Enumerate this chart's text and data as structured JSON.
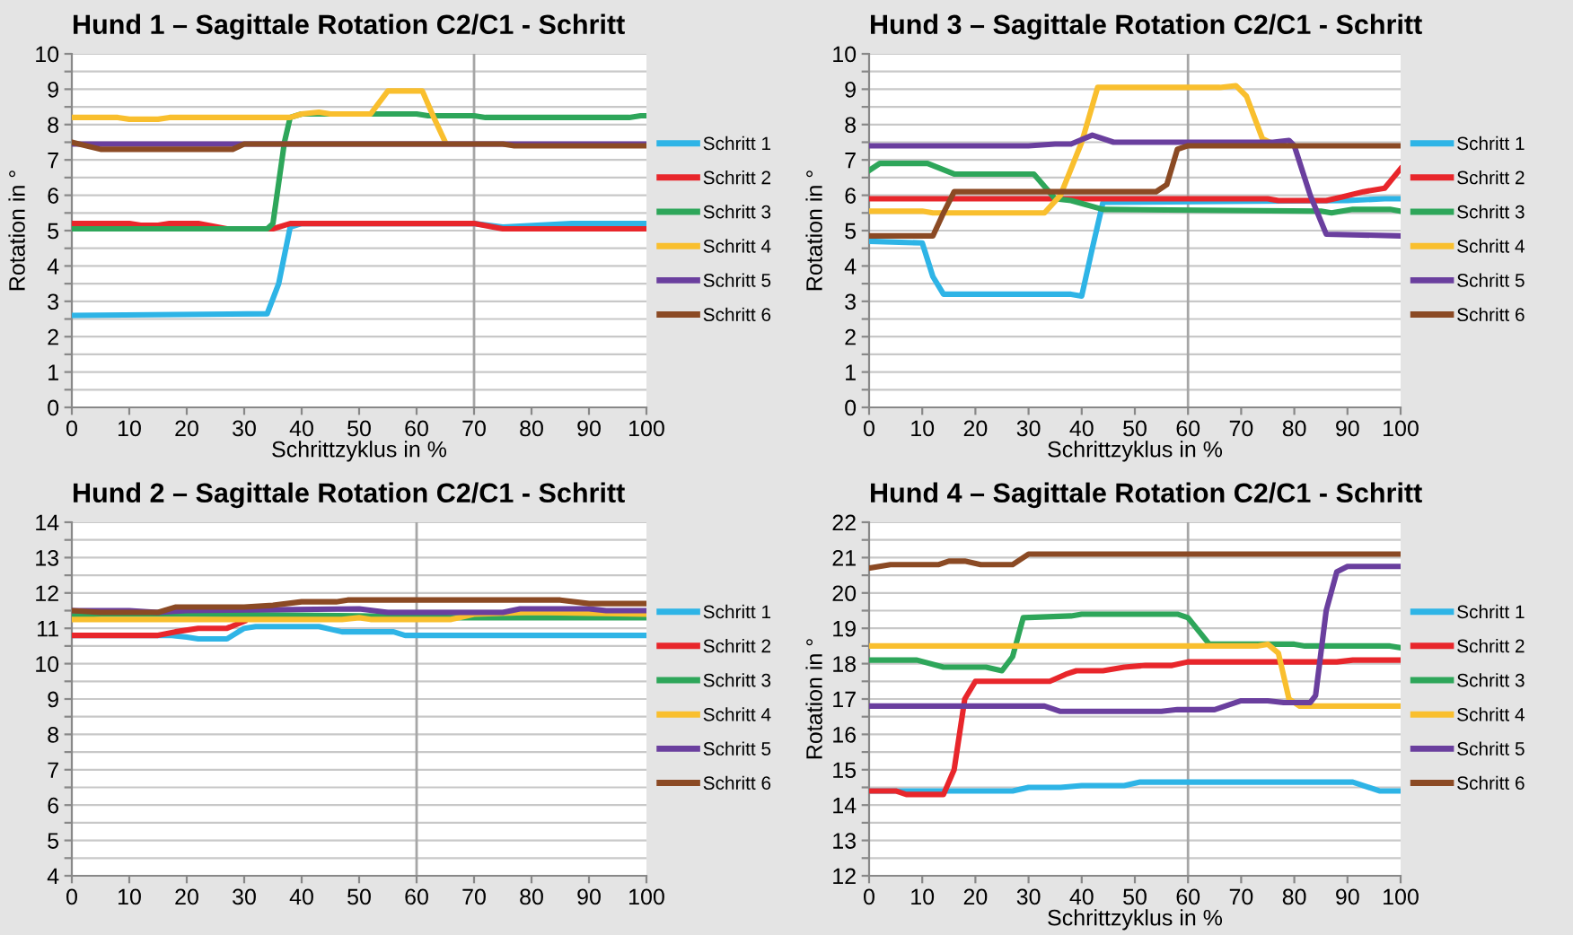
{
  "chart_data": [
    {
      "type": "line",
      "title": "Hund 1 – Sagittale Rotation C2/C1 - Schritt",
      "xlabel": "Schrittzyklus in %",
      "ylabel": "Rotation in °",
      "xlim": [
        0,
        100
      ],
      "xticks": [
        0,
        10,
        20,
        30,
        40,
        50,
        60,
        70,
        80,
        90,
        100
      ],
      "ylim": [
        0,
        10
      ],
      "yticks": [
        0,
        {
          "value": 0.5,
          "label": null
        },
        1,
        {
          "value": 1.5,
          "label": null
        },
        2,
        {
          "value": 2.5,
          "label": null
        },
        3,
        {
          "value": 3.5,
          "label": null
        },
        4,
        {
          "value": 4.5,
          "label": null
        },
        5,
        {
          "value": 5.5,
          "label": null
        },
        6,
        {
          "value": 6.5,
          "label": null
        },
        7,
        {
          "value": 7.5,
          "label": null
        },
        8,
        {
          "value": 8.5,
          "label": null
        },
        9,
        {
          "value": 9.5,
          "label": null
        },
        10
      ],
      "grid": "y",
      "legend": "right",
      "marker": "none",
      "line_style": "solid",
      "ref_lines": [
        {
          "axis": "x",
          "value": 70,
          "color": "#a6a6a6"
        }
      ],
      "series": [
        {
          "name": "Schritt 1",
          "color": "#2eb4e6",
          "x": [
            0,
            34,
            36,
            38,
            40,
            70,
            75,
            87,
            100
          ],
          "values": [
            2.6,
            2.65,
            3.5,
            5.1,
            5.2,
            5.2,
            5.1,
            5.2,
            5.2
          ]
        },
        {
          "name": "Schritt 2",
          "color": "#e8262b",
          "x": [
            0,
            10,
            12,
            15,
            17,
            22,
            27,
            35,
            38,
            70,
            75,
            100
          ],
          "values": [
            5.2,
            5.2,
            5.15,
            5.15,
            5.2,
            5.2,
            5.05,
            5.05,
            5.2,
            5.2,
            5.05,
            5.05
          ]
        },
        {
          "name": "Schritt 3",
          "color": "#2ea65a",
          "x": [
            0,
            34,
            35,
            37,
            38,
            40,
            60,
            62,
            70,
            72,
            97,
            99,
            100
          ],
          "values": [
            5.05,
            5.05,
            5.2,
            7.5,
            8.2,
            8.3,
            8.3,
            8.25,
            8.25,
            8.2,
            8.2,
            8.25,
            8.25
          ]
        },
        {
          "name": "Schritt 4",
          "color": "#f9bf2e",
          "x": [
            0,
            8,
            10,
            15,
            17,
            38,
            40,
            43,
            45,
            52,
            55,
            61,
            63,
            65
          ],
          "values": [
            8.2,
            8.2,
            8.15,
            8.15,
            8.2,
            8.2,
            8.3,
            8.35,
            8.3,
            8.3,
            8.95,
            8.95,
            8.2,
            7.5
          ]
        },
        {
          "name": "Schritt 5",
          "color": "#6a3f9e",
          "x": [
            0,
            100
          ],
          "values": [
            7.45,
            7.45
          ]
        },
        {
          "name": "Schritt 6",
          "color": "#8b4a24",
          "x": [
            0,
            5,
            28,
            30,
            75,
            77,
            100
          ],
          "values": [
            7.5,
            7.3,
            7.3,
            7.45,
            7.45,
            7.4,
            7.4
          ]
        }
      ]
    },
    {
      "type": "line",
      "title": "Hund 3 – Sagittale Rotation C2/C1 - Schritt",
      "xlabel": "Schrittzyklus in %",
      "ylabel": "Rotation in °",
      "xlim": [
        0,
        100
      ],
      "xticks": [
        0,
        10,
        20,
        30,
        40,
        50,
        60,
        70,
        80,
        90,
        100
      ],
      "ylim": [
        0,
        10
      ],
      "yticks": [
        0,
        {
          "value": 0.5,
          "label": null
        },
        1,
        {
          "value": 1.5,
          "label": null
        },
        2,
        {
          "value": 2.5,
          "label": null
        },
        3,
        {
          "value": 3.5,
          "label": null
        },
        4,
        {
          "value": 4.5,
          "label": null
        },
        5,
        {
          "value": 5.5,
          "label": null
        },
        6,
        {
          "value": 6.5,
          "label": null
        },
        7,
        {
          "value": 7.5,
          "label": null
        },
        8,
        {
          "value": 8.5,
          "label": null
        },
        9,
        {
          "value": 9.5,
          "label": null
        },
        10
      ],
      "grid": "y",
      "legend": "right",
      "marker": "none",
      "line_style": "solid",
      "ref_lines": [
        {
          "axis": "x",
          "value": 60,
          "color": "#a6a6a6"
        }
      ],
      "series": [
        {
          "name": "Schritt 1",
          "color": "#2eb4e6",
          "x": [
            0,
            10,
            12,
            14,
            38,
            40,
            42,
            44,
            90,
            97,
            100
          ],
          "values": [
            4.7,
            4.65,
            3.7,
            3.2,
            3.2,
            3.15,
            4.5,
            5.8,
            5.85,
            5.9,
            5.9
          ]
        },
        {
          "name": "Schritt 2",
          "color": "#e8262b",
          "x": [
            0,
            75,
            77,
            86,
            89,
            93,
            97,
            100
          ],
          "values": [
            5.9,
            5.9,
            5.85,
            5.85,
            5.95,
            6.1,
            6.2,
            6.75
          ]
        },
        {
          "name": "Schritt 3",
          "color": "#2ea65a",
          "x": [
            0,
            2,
            11,
            16,
            31,
            35,
            38,
            44,
            85,
            87,
            91,
            98,
            100
          ],
          "values": [
            6.7,
            6.9,
            6.9,
            6.6,
            6.6,
            5.9,
            5.85,
            5.6,
            5.55,
            5.5,
            5.6,
            5.6,
            5.55
          ]
        },
        {
          "name": "Schritt 4",
          "color": "#f9bf2e",
          "x": [
            0,
            10,
            12,
            33,
            36,
            40,
            43,
            66,
            69,
            71,
            74,
            76
          ],
          "values": [
            5.55,
            5.55,
            5.5,
            5.5,
            6.0,
            7.5,
            9.05,
            9.05,
            9.1,
            8.8,
            7.6,
            7.45
          ]
        },
        {
          "name": "Schritt 5",
          "color": "#6a3f9e",
          "x": [
            0,
            30,
            35,
            38,
            42,
            46,
            76,
            79,
            80,
            83,
            86,
            100
          ],
          "values": [
            7.4,
            7.4,
            7.45,
            7.45,
            7.7,
            7.5,
            7.5,
            7.55,
            7.4,
            6.0,
            4.9,
            4.85
          ]
        },
        {
          "name": "Schritt 6",
          "color": "#8b4a24",
          "x": [
            0,
            12,
            14,
            16,
            54,
            56,
            58,
            60,
            100
          ],
          "values": [
            4.85,
            4.85,
            5.5,
            6.1,
            6.1,
            6.3,
            7.3,
            7.4,
            7.4
          ]
        }
      ]
    },
    {
      "type": "line",
      "title": "Hund 2 – Sagittale Rotation C2/C1 - Schritt",
      "xlim": [
        0,
        100
      ],
      "xticks": [
        0,
        10,
        20,
        30,
        40,
        50,
        60,
        70,
        80,
        90,
        100
      ],
      "ylim": [
        4,
        14
      ],
      "yticks": [
        4,
        {
          "value": 4.5,
          "label": null
        },
        5,
        {
          "value": 5.5,
          "label": null
        },
        6,
        {
          "value": 6.5,
          "label": null
        },
        7,
        {
          "value": 7.5,
          "label": null
        },
        8,
        {
          "value": 8.5,
          "label": null
        },
        9,
        {
          "value": 9.5,
          "label": null
        },
        10,
        {
          "value": 10.5,
          "label": null
        },
        11,
        {
          "value": 11.5,
          "label": null
        },
        12,
        {
          "value": 12.5,
          "label": null
        },
        13,
        {
          "value": 13.5,
          "label": null
        },
        14
      ],
      "grid": "y",
      "legend": "right",
      "marker": "none",
      "line_style": "solid",
      "ref_lines": [
        {
          "axis": "x",
          "value": 60,
          "color": "#a6a6a6"
        }
      ],
      "series": [
        {
          "name": "Schritt 1",
          "color": "#2eb4e6",
          "x": [
            0,
            17,
            20,
            22,
            27,
            30,
            32,
            43,
            47,
            56,
            58,
            100
          ],
          "values": [
            10.8,
            10.8,
            10.75,
            10.7,
            10.7,
            11.0,
            11.05,
            11.05,
            10.9,
            10.9,
            10.8,
            10.8
          ]
        },
        {
          "name": "Schritt 2",
          "color": "#e8262b",
          "x": [
            0,
            15,
            18,
            22,
            27,
            30
          ],
          "values": [
            10.8,
            10.8,
            10.9,
            11.0,
            11.0,
            11.2
          ]
        },
        {
          "name": "Schritt 3",
          "color": "#2ea65a",
          "x": [
            0,
            5,
            20,
            50,
            68,
            100
          ],
          "values": [
            11.35,
            11.4,
            11.4,
            11.35,
            11.3,
            11.3
          ]
        },
        {
          "name": "Schritt 4",
          "color": "#f9bf2e",
          "x": [
            0,
            47,
            50,
            52,
            66,
            70,
            80,
            100
          ],
          "values": [
            11.25,
            11.25,
            11.3,
            11.25,
            11.25,
            11.4,
            11.45,
            11.4
          ]
        },
        {
          "name": "Schritt 5",
          "color": "#6a3f9e",
          "x": [
            0,
            10,
            15,
            20,
            50,
            55,
            75,
            78,
            90,
            93,
            100
          ],
          "values": [
            11.5,
            11.5,
            11.45,
            11.5,
            11.55,
            11.45,
            11.45,
            11.55,
            11.55,
            11.5,
            11.5
          ]
        },
        {
          "name": "Schritt 6",
          "color": "#8b4a24",
          "x": [
            0,
            5,
            15,
            18,
            30,
            35,
            40,
            46,
            48,
            85,
            90,
            100
          ],
          "values": [
            11.5,
            11.45,
            11.45,
            11.6,
            11.6,
            11.65,
            11.75,
            11.75,
            11.8,
            11.8,
            11.7,
            11.7
          ]
        }
      ]
    },
    {
      "type": "line",
      "title": "Hund 4 – Sagittale Rotation C2/C1 - Schritt",
      "xlabel": "Schrittzyklus in %",
      "ylabel": "Rotation in °",
      "xlim": [
        0,
        100
      ],
      "xticks": [
        0,
        10,
        20,
        30,
        40,
        50,
        60,
        70,
        80,
        90,
        100
      ],
      "ylim": [
        12,
        22
      ],
      "yticks": [
        12,
        {
          "value": 12.5,
          "label": null
        },
        13,
        {
          "value": 13.5,
          "label": null
        },
        14,
        {
          "value": 14.5,
          "label": null
        },
        15,
        {
          "value": 15.5,
          "label": null
        },
        16,
        {
          "value": 16.5,
          "label": null
        },
        17,
        {
          "value": 17.5,
          "label": null
        },
        18,
        {
          "value": 18.5,
          "label": null
        },
        19,
        {
          "value": 19.5,
          "label": null
        },
        20,
        {
          "value": 20.5,
          "label": null
        },
        21,
        {
          "value": 21.5,
          "label": null
        },
        22
      ],
      "grid": "y",
      "legend": "right",
      "marker": "none",
      "line_style": "solid",
      "ref_lines": [
        {
          "axis": "x",
          "value": 60,
          "color": "#a6a6a6"
        }
      ],
      "series": [
        {
          "name": "Schritt 1",
          "color": "#2eb4e6",
          "x": [
            0,
            27,
            30,
            36,
            40,
            48,
            51,
            91,
            96,
            100
          ],
          "values": [
            14.4,
            14.4,
            14.5,
            14.5,
            14.55,
            14.55,
            14.65,
            14.65,
            14.4,
            14.4
          ]
        },
        {
          "name": "Schritt 2",
          "color": "#e8262b",
          "x": [
            0,
            5,
            7,
            14,
            16,
            18,
            20,
            34,
            37,
            39,
            44,
            48,
            52,
            57,
            60,
            88,
            91,
            100
          ],
          "values": [
            14.4,
            14.4,
            14.3,
            14.3,
            15.0,
            17.0,
            17.5,
            17.5,
            17.7,
            17.8,
            17.8,
            17.9,
            17.95,
            17.95,
            18.05,
            18.05,
            18.1,
            18.1
          ]
        },
        {
          "name": "Schritt 3",
          "color": "#2ea65a",
          "x": [
            0,
            9,
            14,
            22,
            25,
            27,
            29,
            38,
            40,
            58,
            60,
            64,
            80,
            82,
            98,
            100
          ],
          "values": [
            18.1,
            18.1,
            17.9,
            17.9,
            17.8,
            18.2,
            19.3,
            19.35,
            19.4,
            19.4,
            19.3,
            18.55,
            18.55,
            18.5,
            18.5,
            18.45
          ]
        },
        {
          "name": "Schritt 4",
          "color": "#f9bf2e",
          "x": [
            0,
            73,
            75,
            77,
            79,
            81,
            100
          ],
          "values": [
            18.5,
            18.5,
            18.55,
            18.3,
            17.0,
            16.8,
            16.8
          ]
        },
        {
          "name": "Schritt 5",
          "color": "#6a3f9e",
          "x": [
            0,
            33,
            36,
            55,
            58,
            65,
            70,
            75,
            78,
            83,
            84,
            86,
            88,
            90,
            100
          ],
          "values": [
            16.8,
            16.8,
            16.65,
            16.65,
            16.7,
            16.7,
            16.95,
            16.95,
            16.9,
            16.9,
            17.1,
            19.5,
            20.6,
            20.75,
            20.75
          ]
        },
        {
          "name": "Schritt 6",
          "color": "#8b4a24",
          "x": [
            0,
            4,
            13,
            15,
            18,
            21,
            27,
            30,
            100
          ],
          "values": [
            20.7,
            20.8,
            20.8,
            20.9,
            20.9,
            20.8,
            20.8,
            21.1,
            21.1
          ]
        }
      ]
    }
  ]
}
